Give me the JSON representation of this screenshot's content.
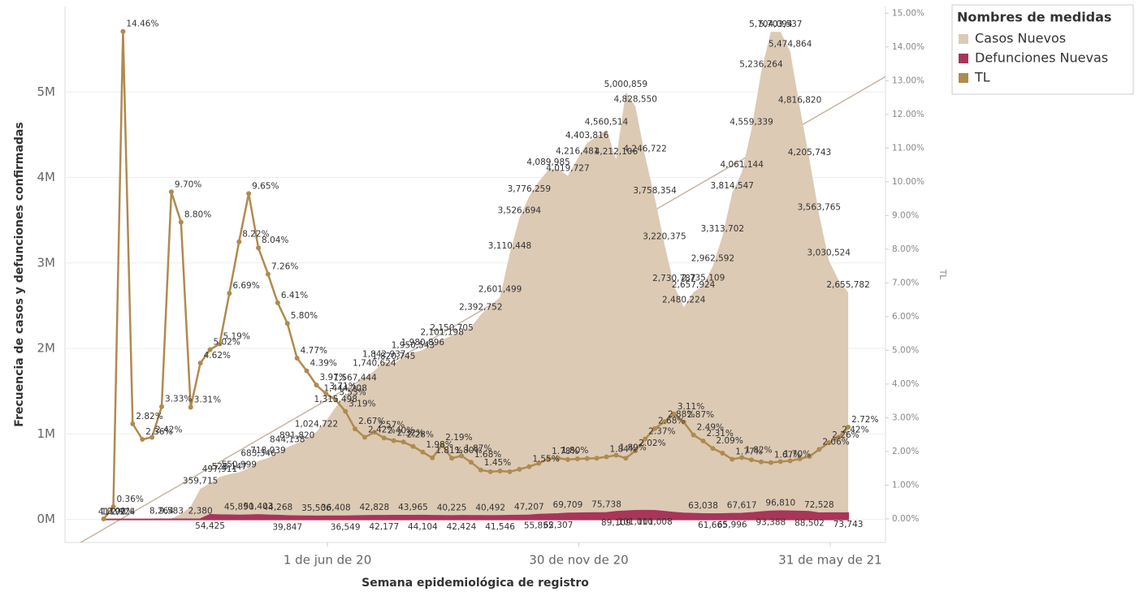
{
  "chart_data": {
    "type": "combo",
    "x_label": "Semana epidemiológica de registro",
    "y_label": "Frecuencia de casos y defunciones confirmadas",
    "y2_label": "TL",
    "legend_title": "Nombres de medidas",
    "legend": "right",
    "grid": true,
    "trend_line": true,
    "x": [
      "2019-12-22",
      "2019-12-29",
      "2020-01-05",
      "2020-01-12",
      "2020-01-19",
      "2020-01-26",
      "2020-02-02",
      "2020-02-09",
      "2020-02-16",
      "2020-02-23",
      "2020-03-01",
      "2020-03-08",
      "2020-03-15",
      "2020-03-22",
      "2020-03-29",
      "2020-04-05",
      "2020-04-12",
      "2020-04-19",
      "2020-04-26",
      "2020-05-03",
      "2020-05-10",
      "2020-05-17",
      "2020-05-24",
      "2020-05-31",
      "2020-06-07",
      "2020-06-14",
      "2020-06-21",
      "2020-06-28",
      "2020-07-05",
      "2020-07-12",
      "2020-07-19",
      "2020-07-26",
      "2020-08-02",
      "2020-08-09",
      "2020-08-16",
      "2020-08-23",
      "2020-08-30",
      "2020-09-06",
      "2020-09-13",
      "2020-09-20",
      "2020-09-27",
      "2020-10-04",
      "2020-10-11",
      "2020-10-18",
      "2020-10-25",
      "2020-11-01",
      "2020-11-08",
      "2020-11-15",
      "2020-11-22",
      "2020-11-29",
      "2020-12-06",
      "2020-12-13",
      "2020-12-20",
      "2020-12-27",
      "2021-01-03",
      "2021-01-10",
      "2021-01-17",
      "2021-01-24",
      "2021-01-31",
      "2021-02-07",
      "2021-02-14",
      "2021-02-21",
      "2021-02-28",
      "2021-03-07",
      "2021-03-14",
      "2021-03-21",
      "2021-03-28",
      "2021-04-04",
      "2021-04-11",
      "2021-04-18",
      "2021-04-25",
      "2021-05-02",
      "2021-05-09",
      "2021-05-16",
      "2021-05-23",
      "2021-05-30",
      "2021-06-06",
      "2021-06-13"
    ],
    "xlim": [
      "2019-11-24",
      "2021-07-10"
    ],
    "xticks": [
      {
        "value": "2020-06-01",
        "label": "1 de jun de 20"
      },
      {
        "value": "2020-11-30",
        "label": "30 de nov de 20"
      },
      {
        "value": "2021-05-31",
        "label": "31 de may de 21"
      }
    ],
    "ylim": [
      -270000,
      6000000
    ],
    "yticks": [
      {
        "value": 0,
        "label": "0M"
      },
      {
        "value": 1000000,
        "label": "1M"
      },
      {
        "value": 2000000,
        "label": "2M"
      },
      {
        "value": 3000000,
        "label": "3M"
      },
      {
        "value": 4000000,
        "label": "4M"
      },
      {
        "value": 5000000,
        "label": "5M"
      }
    ],
    "y2lim": [
      -0.7,
      15.2
    ],
    "y2ticks": [
      {
        "value": 0,
        "label": "0.00%"
      },
      {
        "value": 1,
        "label": "1.00%"
      },
      {
        "value": 2,
        "label": "2.00%"
      },
      {
        "value": 3,
        "label": "3.00%"
      },
      {
        "value": 4,
        "label": "4.00%"
      },
      {
        "value": 5,
        "label": "5.00%"
      },
      {
        "value": 6,
        "label": "6.00%"
      },
      {
        "value": 7,
        "label": "7.00%"
      },
      {
        "value": 8,
        "label": "8.00%"
      },
      {
        "value": 9,
        "label": "9.00%"
      },
      {
        "value": 10,
        "label": "10.00%"
      },
      {
        "value": 11,
        "label": "11.00%"
      },
      {
        "value": 12,
        "label": "12.00%"
      },
      {
        "value": 13,
        "label": "13.00%"
      },
      {
        "value": 14,
        "label": "14.00%"
      },
      {
        "value": 15,
        "label": "15.00%"
      }
    ],
    "series": [
      {
        "name": "Casos Nuevos",
        "type": "area",
        "color": "#dccab4",
        "values": [
          41,
          1192,
          2924,
          4000,
          5500,
          7000,
          8264,
          9583,
          60000,
          150000,
          359715,
          420000,
          497911,
          528147,
          550999,
          600000,
          683346,
          718039,
          780000,
          844138,
          891820,
          950000,
          1024722,
          1150000,
          1315498,
          1444208,
          1567444,
          1650000,
          1740624,
          1842937,
          1820745,
          1900000,
          1950543,
          1980896,
          2050000,
          2101198,
          2150705,
          2200000,
          2250000,
          2392752,
          2500000,
          2601499,
          3110448,
          3526694,
          3776259,
          3950000,
          4089985,
          4100000,
          4019727,
          4216481,
          4403816,
          4480000,
          4560514,
          4212106,
          5000859,
          4828550,
          4246722,
          3758354,
          3220375,
          2730787,
          2480224,
          2657924,
          2735109,
          2962592,
          3313702,
          3814547,
          4061144,
          4559339,
          5236264,
          5704094,
          5703537,
          5474864,
          4816820,
          4205743,
          3563765,
          3030524,
          2800000,
          2655782
        ],
        "value_labels": [
          "41",
          "1,192",
          "2,924",
          null,
          null,
          null,
          "8,264",
          "9,583",
          null,
          null,
          "359,715",
          null,
          "497,911",
          "528,147",
          "550,999",
          null,
          "683,346",
          "718,039",
          null,
          "844,138",
          "891,820",
          null,
          "1,024,722",
          null,
          "1,315,498",
          "1,444,208",
          "1,567,444",
          null,
          "1,740,624",
          "1,842,937",
          "1,820,745",
          null,
          "1,950,543",
          "1,980,896",
          null,
          "2,101,198",
          "2,150,705",
          null,
          null,
          "2,392,752",
          null,
          "2,601,499",
          "3,110,448",
          "3,526,694",
          "3,776,259",
          null,
          "4,089,985",
          null,
          "4,019,727",
          "4,216,481",
          "4,403,816",
          null,
          "4,560,514",
          "4,212,106",
          "5,000,859",
          "4,828,550",
          "4,246,722",
          "3,758,354",
          "3,220,375",
          "2,730,787",
          "2,480,224",
          "2,657,924",
          "2,735,109",
          "2,962,592",
          "3,313,702",
          "3,814,547",
          "4,061,144",
          "4,559,339",
          "5,236,264",
          "5,704,094",
          "5,703,537",
          "5,474,864",
          "4,816,820",
          "4,205,743",
          "3,563,765",
          "3,030,524",
          null,
          "2,655,782"
        ]
      },
      {
        "name": "Defunciones Nuevas",
        "type": "area",
        "color": "#a8355a",
        "values": [
          0,
          12,
          29,
          60,
          100,
          150,
          200,
          300,
          600,
          1200,
          2380,
          54425,
          50000,
          48000,
          45890,
          48000,
          51403,
          47000,
          44268,
          39847,
          38000,
          36500,
          35506,
          36000,
          36408,
          36549,
          39000,
          41000,
          42828,
          42177,
          43000,
          43500,
          43965,
          44104,
          42500,
          41000,
          40225,
          42424,
          41500,
          41000,
          40492,
          41546,
          43000,
          45000,
          47207,
          55855,
          59000,
          62307,
          69709,
          71000,
          73000,
          74000,
          75738,
          89109,
          95000,
          101010,
          102000,
          101008,
          90000,
          78000,
          70000,
          66000,
          63038,
          61665,
          63000,
          65996,
          67617,
          75000,
          85000,
          93388,
          96810,
          95000,
          92000,
          88502,
          72528,
          73000,
          73500,
          73743
        ],
        "value_labels": [
          null,
          null,
          null,
          null,
          null,
          null,
          null,
          null,
          null,
          null,
          "2,380",
          "54,425",
          null,
          null,
          "45,890",
          null,
          "51,403",
          null,
          "44,268",
          "39,847",
          null,
          null,
          "35,506",
          null,
          "36,408",
          "36,549",
          null,
          null,
          "42,828",
          "42,177",
          null,
          null,
          "43,965",
          "44,104",
          null,
          null,
          "40,225",
          "42,424",
          null,
          null,
          "40,492",
          "41,546",
          null,
          null,
          "47,207",
          "55,855",
          null,
          "62,307",
          "69,709",
          null,
          null,
          null,
          "75,738",
          "89,109",
          null,
          "101,010",
          null,
          "101,008",
          null,
          null,
          null,
          null,
          "63,038",
          "61,665",
          null,
          "65,996",
          "67,617",
          null,
          null,
          "93,388",
          "96,810",
          null,
          null,
          "88,502",
          "72,528",
          null,
          null,
          "73,743"
        ]
      },
      {
        "name": "TL",
        "type": "line",
        "axis": "y2",
        "color": "#b08a50",
        "values": [
          0.0,
          0.36,
          14.46,
          2.82,
          2.36,
          2.42,
          3.33,
          9.7,
          8.8,
          3.31,
          4.62,
          5.02,
          5.19,
          6.69,
          8.22,
          9.65,
          8.04,
          7.26,
          6.41,
          5.8,
          4.77,
          4.39,
          3.97,
          3.71,
          3.53,
          3.19,
          2.67,
          2.42,
          2.57,
          2.4,
          2.32,
          2.28,
          2.15,
          1.98,
          1.81,
          2.19,
          1.8,
          1.87,
          1.68,
          1.45,
          1.4,
          1.42,
          1.4,
          1.47,
          1.55,
          1.65,
          1.78,
          1.8,
          1.76,
          1.78,
          1.79,
          1.8,
          1.84,
          1.89,
          1.8,
          2.02,
          2.37,
          2.68,
          2.88,
          3.11,
          2.87,
          2.49,
          2.31,
          2.09,
          1.95,
          1.77,
          1.82,
          1.75,
          1.69,
          1.67,
          1.7,
          1.72,
          1.78,
          1.85,
          2.06,
          2.26,
          2.42,
          2.72
        ],
        "value_labels": [
          "0.00%",
          "0.36%",
          "14.46%",
          "2.82%",
          "2.36%",
          "2.42%",
          "3.33%",
          "9.70%",
          "8.80%",
          "3.31%",
          "4.62%",
          "5.02%",
          "5.19%",
          "6.69%",
          "8.22%",
          "9.65%",
          "8.04%",
          "7.26%",
          "6.41%",
          "5.80%",
          "4.77%",
          "4.39%",
          "3.97%",
          "3.71%",
          "3.53%",
          "3.19%",
          "2.67%",
          "2.42%",
          "2.57%",
          "2.40%",
          "2.32%",
          "2.28%",
          null,
          "1.98%",
          "1.81%",
          "2.19%",
          "1.80%",
          "1.87%",
          "1.68%",
          "1.45%",
          null,
          null,
          null,
          null,
          "1.55%",
          null,
          "1.78%",
          "1.80%",
          null,
          null,
          null,
          null,
          "1.84%",
          "1.89%",
          null,
          "2.02%",
          "2.37%",
          "2.68%",
          "2.88%",
          "3.11%",
          "2.87%",
          "2.49%",
          "2.31%",
          "2.09%",
          null,
          "1.77%",
          "1.82%",
          null,
          null,
          "1.67%",
          "1.70%",
          null,
          null,
          null,
          "2.06%",
          "2.26%",
          "2.42%",
          "2.72%"
        ]
      }
    ]
  }
}
